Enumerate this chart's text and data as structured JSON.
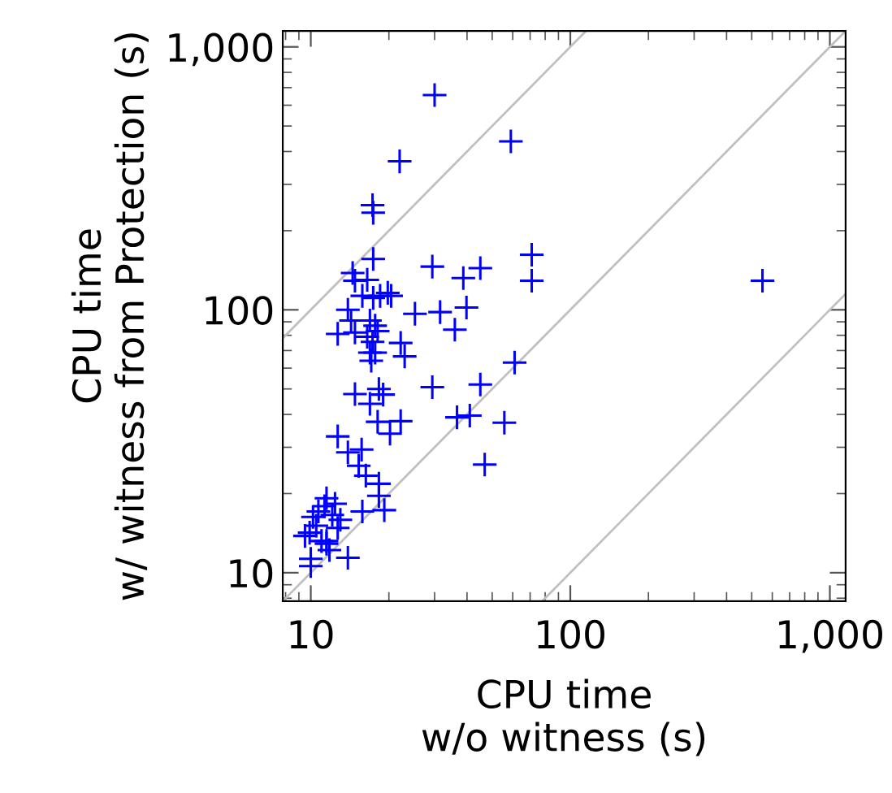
{
  "chart_data": {
    "type": "scatter",
    "xlabel": "CPU time\nw/o witness (s)",
    "ylabel": "CPU time\nw/ witness from Protection (s)",
    "log": "xy",
    "grid": false,
    "legend": false,
    "xlim": [
      7.8,
      1150
    ],
    "ylim": [
      7.8,
      1150
    ],
    "xticks": [
      10,
      100,
      {
        "value": 1000,
        "label": "1,000"
      }
    ],
    "yticks": [
      10,
      100,
      {
        "value": 1000,
        "label": "1,000"
      }
    ],
    "series": [
      {
        "type": "line",
        "color": "#c0c0c0",
        "marker": "none",
        "x": [
          7.8,
          115
        ],
        "values": [
          78,
          1150
        ]
      },
      {
        "type": "line",
        "color": "#c0c0c0",
        "marker": "none",
        "x": [
          7.8,
          1150
        ],
        "values": [
          7.8,
          1150
        ]
      },
      {
        "type": "line",
        "color": "#c0c0c0",
        "marker": "none",
        "x": [
          78,
          1150
        ],
        "values": [
          7.8,
          115
        ]
      },
      {
        "color": "#0000ff",
        "marker": "cross",
        "x": [
          30,
          59,
          22,
          17.3,
          17.4,
          17.4,
          29.4,
          45,
          71,
          71,
          550,
          38.7,
          14.5,
          14.8,
          16.5,
          15.8,
          17.4,
          18.5,
          19.8,
          20.4,
          25.2,
          31.5,
          39.8,
          35.9,
          13.9,
          14.3,
          14.8,
          12.7,
          16.5,
          17.7,
          17.3,
          16.9,
          17.7,
          17.1,
          18.1,
          16.9,
          22.2,
          23,
          61,
          14.8,
          16.9,
          18.3,
          19,
          29.4,
          45,
          18.1,
          22.2,
          20.2,
          36.6,
          41,
          55.7,
          46.8,
          12.7,
          13.9,
          15.7,
          15.3,
          16.3,
          18.3,
          18.3,
          19.2,
          15.8,
          13.9,
          10,
          10,
          9.5,
          9.9,
          10.2,
          10.7,
          11.3,
          11.5,
          12.4,
          12.1,
          11,
          11.5,
          11.8,
          12.7,
          13,
          10.5,
          11.5
        ],
        "values": [
          656,
          437,
          367,
          250,
          234,
          156,
          146,
          144,
          162,
          129,
          129,
          132,
          138,
          129,
          130,
          113,
          111,
          113,
          116,
          113,
          96.6,
          98,
          102,
          84,
          100,
          91,
          82,
          81,
          79,
          87,
          75.5,
          68.7,
          68.7,
          64,
          83,
          91,
          74.8,
          66.5,
          63,
          47.8,
          43.9,
          50,
          47.6,
          50.8,
          52,
          37.5,
          37.7,
          33.8,
          39,
          39.6,
          37.2,
          25.8,
          33,
          28.7,
          29.4,
          25.5,
          23.4,
          21.8,
          19.6,
          17.3,
          17.1,
          11.4,
          10.6,
          11.3,
          13.8,
          14.2,
          16.3,
          17.1,
          17.9,
          19.2,
          18.3,
          16.6,
          13.2,
          12.9,
          12.2,
          14.8,
          15.9,
          15.1,
          13.2
        ]
      }
    ]
  }
}
